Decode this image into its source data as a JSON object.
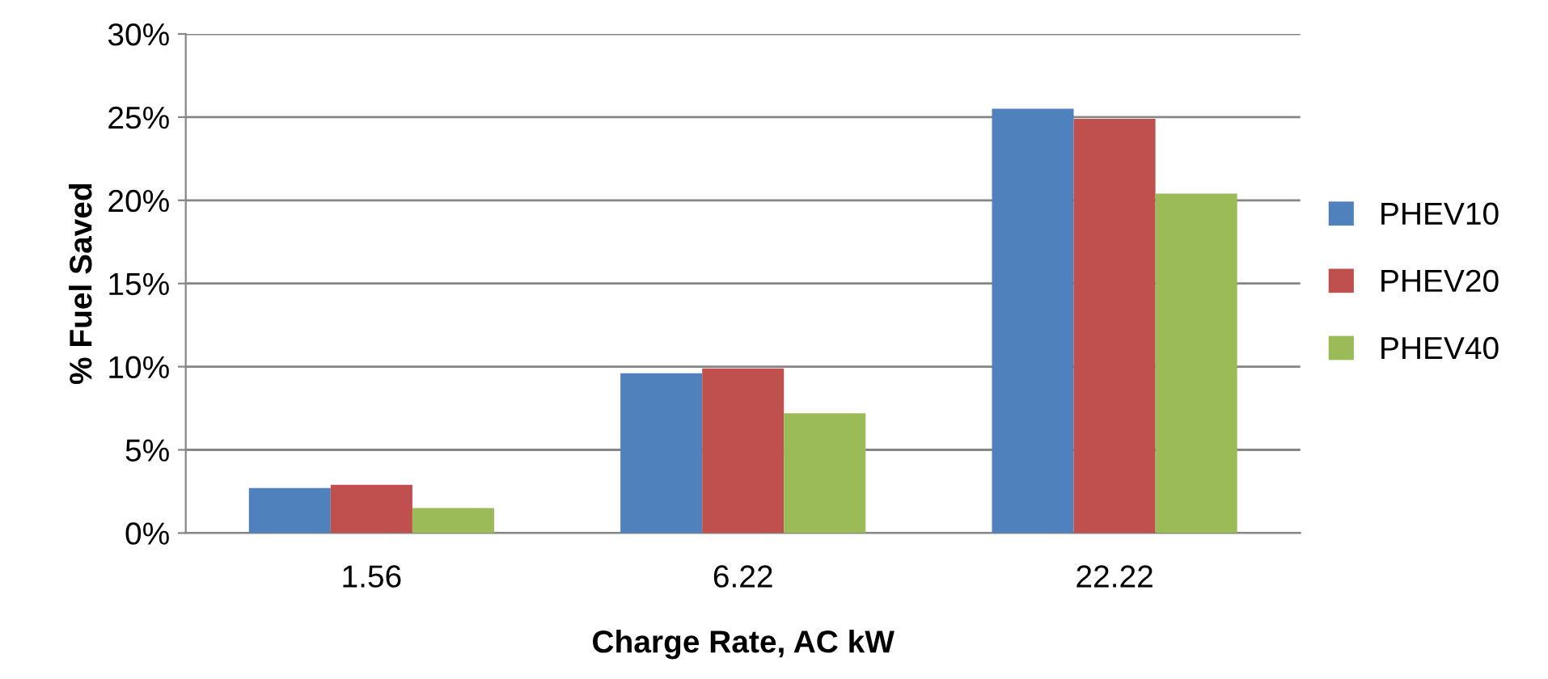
{
  "chart_data": {
    "type": "bar",
    "xlabel": "Charge Rate, AC kW",
    "ylabel": "% Fuel Saved",
    "categories": [
      "1.56",
      "6.22",
      "22.22"
    ],
    "series": [
      {
        "name": "PHEV10",
        "color": "#4f81bd",
        "values": [
          2.7,
          9.6,
          25.5
        ]
      },
      {
        "name": "PHEV20",
        "color": "#c0504d",
        "values": [
          2.9,
          9.9,
          24.9
        ]
      },
      {
        "name": "PHEV40",
        "color": "#9bbb59",
        "values": [
          1.5,
          7.2,
          20.4
        ]
      }
    ],
    "ylim": [
      0,
      30
    ],
    "yticks": [
      {
        "value": 0,
        "label": "0%"
      },
      {
        "value": 5,
        "label": "5%"
      },
      {
        "value": 10,
        "label": "10%"
      },
      {
        "value": 15,
        "label": "15%"
      },
      {
        "value": 20,
        "label": "20%"
      },
      {
        "value": 25,
        "label": "25%"
      },
      {
        "value": 30,
        "label": "30%"
      }
    ],
    "grid": "y",
    "legend": "right"
  }
}
